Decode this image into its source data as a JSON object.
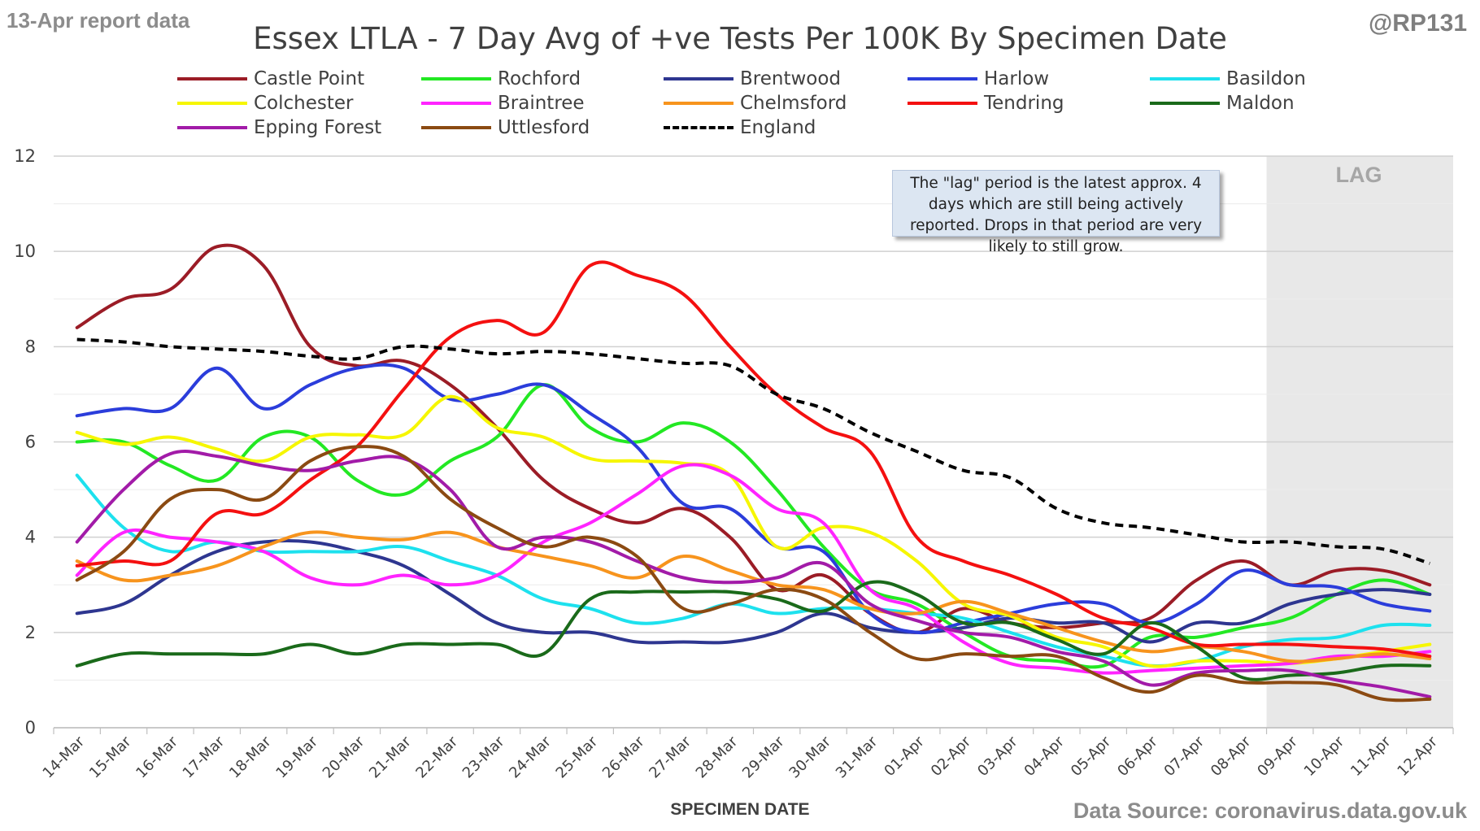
{
  "header": {
    "corner_left": "13-Apr report data",
    "corner_right": "@RP131",
    "footer_source": "Data Source: coronavirus.data.gov.uk",
    "note": "The \"lag\" period is the latest approx. 4 days which are still being actively reported. Drops in that period are very likely to still grow.",
    "lag_label": "LAG"
  },
  "chart_data": {
    "type": "line",
    "title": "Essex LTLA - 7 Day Avg of +ve Tests Per 100K By Specimen Date",
    "xlabel": "SPECIMEN DATE",
    "ylabel": "",
    "ylim": [
      0,
      12
    ],
    "yticks": [
      0,
      2,
      4,
      6,
      8,
      10,
      12
    ],
    "grid": true,
    "lag_shading": {
      "from": "09-Apr",
      "to": "12-Apr",
      "color": "#e8e8e8"
    },
    "categories": [
      "14-Mar",
      "15-Mar",
      "16-Mar",
      "17-Mar",
      "18-Mar",
      "19-Mar",
      "20-Mar",
      "21-Mar",
      "22-Mar",
      "23-Mar",
      "24-Mar",
      "25-Mar",
      "26-Mar",
      "27-Mar",
      "28-Mar",
      "29-Mar",
      "30-Mar",
      "31-Mar",
      "01-Apr",
      "02-Apr",
      "03-Apr",
      "04-Apr",
      "05-Apr",
      "06-Apr",
      "07-Apr",
      "08-Apr",
      "09-Apr",
      "10-Apr",
      "11-Apr",
      "12-Apr"
    ],
    "series": [
      {
        "name": "Castle Point",
        "color": "#9b1c26",
        "dashed": false,
        "values": [
          8.4,
          9.0,
          9.2,
          10.1,
          9.7,
          8.0,
          7.6,
          7.7,
          7.2,
          6.3,
          5.2,
          4.6,
          4.3,
          4.6,
          4.0,
          2.9,
          3.2,
          2.4,
          2.0,
          2.5,
          2.2,
          2.1,
          2.2,
          2.3,
          3.1,
          3.5,
          3.0,
          3.3,
          3.3,
          3.0
        ]
      },
      {
        "name": "Rochford",
        "color": "#23e823",
        "dashed": false,
        "values": [
          6.0,
          6.0,
          5.5,
          5.2,
          6.1,
          6.1,
          5.2,
          4.9,
          5.6,
          6.1,
          7.2,
          6.3,
          6.0,
          6.4,
          6.0,
          5.0,
          3.8,
          2.9,
          2.6,
          2.0,
          1.5,
          1.4,
          1.3,
          1.9,
          1.9,
          2.1,
          2.3,
          2.8,
          3.1,
          2.8
        ]
      },
      {
        "name": "Brentwood",
        "color": "#2e3690",
        "dashed": false,
        "values": [
          2.4,
          2.6,
          3.2,
          3.7,
          3.9,
          3.9,
          3.7,
          3.4,
          2.8,
          2.2,
          2.0,
          2.0,
          1.8,
          1.8,
          1.8,
          2.0,
          2.4,
          2.1,
          2.0,
          2.1,
          2.3,
          2.2,
          2.2,
          1.8,
          2.2,
          2.2,
          2.6,
          2.8,
          2.9,
          2.8
        ]
      },
      {
        "name": "Harlow",
        "color": "#2b3ddb",
        "dashed": false,
        "values": [
          6.55,
          6.7,
          6.7,
          7.55,
          6.7,
          7.2,
          7.55,
          7.55,
          6.9,
          7.0,
          7.2,
          6.6,
          5.9,
          4.7,
          4.6,
          3.8,
          3.7,
          2.4,
          2.0,
          2.2,
          2.4,
          2.6,
          2.6,
          2.2,
          2.6,
          3.3,
          3.0,
          2.95,
          2.6,
          2.45
        ]
      },
      {
        "name": "Basildon",
        "color": "#1de1ee",
        "dashed": false,
        "values": [
          5.3,
          4.2,
          3.7,
          3.9,
          3.7,
          3.7,
          3.7,
          3.8,
          3.5,
          3.2,
          2.7,
          2.5,
          2.2,
          2.3,
          2.6,
          2.4,
          2.5,
          2.5,
          2.4,
          2.3,
          2.0,
          1.7,
          1.5,
          1.3,
          1.4,
          1.7,
          1.85,
          1.9,
          2.15,
          2.15
        ]
      },
      {
        "name": "Colchester",
        "color": "#f6f600",
        "dashed": false,
        "values": [
          6.2,
          5.95,
          6.1,
          5.85,
          5.6,
          6.1,
          6.15,
          6.15,
          6.95,
          6.3,
          6.1,
          5.65,
          5.6,
          5.55,
          5.3,
          3.8,
          4.2,
          4.1,
          3.5,
          2.6,
          2.35,
          1.9,
          1.7,
          1.3,
          1.4,
          1.4,
          1.35,
          1.45,
          1.6,
          1.75
        ]
      },
      {
        "name": "Braintree",
        "color": "#ff24ff",
        "dashed": false,
        "values": [
          3.2,
          4.1,
          4.0,
          3.9,
          3.7,
          3.15,
          3.0,
          3.2,
          3.0,
          3.2,
          3.9,
          4.3,
          4.9,
          5.5,
          5.3,
          4.6,
          4.3,
          2.9,
          2.5,
          1.8,
          1.35,
          1.25,
          1.15,
          1.2,
          1.25,
          1.3,
          1.35,
          1.5,
          1.5,
          1.6
        ]
      },
      {
        "name": "Chelmsford",
        "color": "#f7941d",
        "dashed": false,
        "values": [
          3.5,
          3.1,
          3.2,
          3.4,
          3.8,
          4.1,
          4.0,
          3.95,
          4.1,
          3.8,
          3.6,
          3.4,
          3.15,
          3.6,
          3.3,
          3.0,
          2.9,
          2.5,
          2.4,
          2.65,
          2.4,
          2.1,
          1.8,
          1.6,
          1.7,
          1.6,
          1.4,
          1.45,
          1.55,
          1.45
        ]
      },
      {
        "name": "Tendring",
        "color": "#f41010",
        "dashed": false,
        "values": [
          3.4,
          3.5,
          3.5,
          4.5,
          4.5,
          5.2,
          5.9,
          7.1,
          8.2,
          8.55,
          8.3,
          9.7,
          9.5,
          9.1,
          8.0,
          7.0,
          6.3,
          5.8,
          4.0,
          3.5,
          3.2,
          2.8,
          2.3,
          2.1,
          1.75,
          1.75,
          1.75,
          1.7,
          1.65,
          1.5
        ]
      },
      {
        "name": "Maldon",
        "color": "#1a6a1a",
        "dashed": false,
        "values": [
          1.3,
          1.55,
          1.55,
          1.55,
          1.55,
          1.75,
          1.55,
          1.75,
          1.75,
          1.75,
          1.55,
          2.7,
          2.85,
          2.85,
          2.85,
          2.7,
          2.45,
          3.05,
          2.8,
          2.2,
          2.2,
          1.85,
          1.55,
          2.2,
          1.7,
          1.05,
          1.1,
          1.15,
          1.3,
          1.3
        ]
      },
      {
        "name": "Epping Forest",
        "color": "#a21ba8",
        "dashed": false,
        "values": [
          3.9,
          5.0,
          5.75,
          5.7,
          5.5,
          5.4,
          5.6,
          5.65,
          5.0,
          3.8,
          4.0,
          3.9,
          3.5,
          3.15,
          3.05,
          3.15,
          3.45,
          2.6,
          2.25,
          2.0,
          1.9,
          1.6,
          1.4,
          0.9,
          1.15,
          1.2,
          1.2,
          1.0,
          0.85,
          0.65
        ]
      },
      {
        "name": "Uttlesford",
        "color": "#8b4a12",
        "dashed": false,
        "values": [
          3.1,
          3.7,
          4.8,
          5.0,
          4.8,
          5.6,
          5.9,
          5.7,
          4.8,
          4.2,
          3.8,
          4.0,
          3.6,
          2.5,
          2.6,
          2.9,
          2.7,
          2.0,
          1.45,
          1.55,
          1.5,
          1.5,
          1.05,
          0.75,
          1.1,
          0.95,
          0.95,
          0.9,
          0.6,
          0.6
        ]
      },
      {
        "name": "England",
        "color": "#000000",
        "dashed": true,
        "values": [
          8.15,
          8.1,
          8.0,
          7.95,
          7.9,
          7.8,
          7.75,
          8.0,
          7.95,
          7.85,
          7.9,
          7.85,
          7.75,
          7.65,
          7.6,
          7.0,
          6.7,
          6.2,
          5.8,
          5.4,
          5.25,
          4.6,
          4.3,
          4.2,
          4.05,
          3.9,
          3.9,
          3.8,
          3.75,
          3.45
        ]
      }
    ]
  }
}
